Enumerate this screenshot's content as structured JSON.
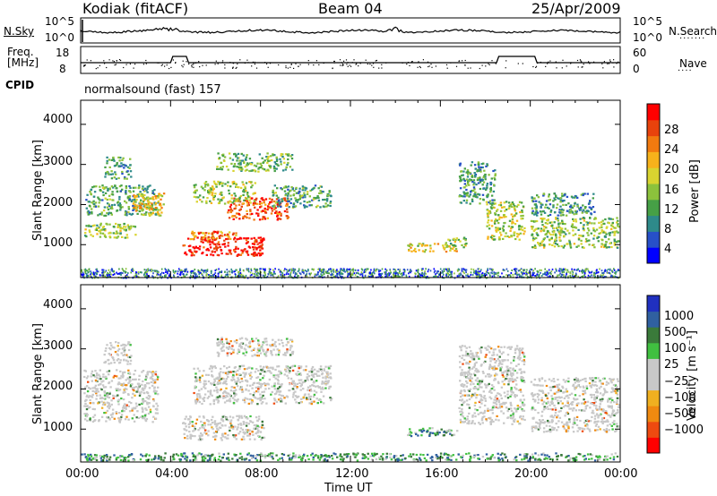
{
  "header": {
    "station": "Kodiak (fitACF)",
    "beam": "Beam 04",
    "date": "25/Apr/2009"
  },
  "top_panels": {
    "nsky_label": "N.Sky",
    "nsky_ticks": [
      "10^5",
      "10^0"
    ],
    "nsearch_label": "N.Search",
    "freq_label_line1": "Freq.",
    "freq_label_line2": "[MHz]",
    "freq_ticks": [
      "18",
      "8"
    ],
    "nave_label": "Nave",
    "nave_ticks": [
      "60",
      "0"
    ],
    "cpid_label": "CPID",
    "cpid_text": "normalsound (fast) 157"
  },
  "chart_data": [
    {
      "type": "heatmap",
      "name": "Power",
      "colorbar_label": "Power [dB]",
      "colorbar_ticks": [
        "28",
        "24",
        "20",
        "16",
        "12",
        "8",
        "4"
      ],
      "colorbar_colors": [
        "#0000ff",
        "#2750c8",
        "#2e8a8a",
        "#46a046",
        "#8cc23c",
        "#d9d430",
        "#f7b21b",
        "#f27a0f",
        "#e8420c",
        "#ff0000"
      ],
      "xlabel": "Time UT",
      "ylabel": "Slant Range [km]",
      "xlim_hours": [
        0,
        24
      ],
      "ylim_km": [
        180,
        4600
      ],
      "xticks": [
        "00:00",
        "04:00",
        "08:00",
        "12:00",
        "16:00",
        "20:00",
        "00:00"
      ],
      "yticks": [
        "1000",
        "2000",
        "3000",
        "4000"
      ],
      "regions": [
        {
          "t0": 0.1,
          "t1": 2.5,
          "r0": 1150,
          "r1": 1550,
          "level": 0.45
        },
        {
          "t0": 0.2,
          "t1": 3.5,
          "r0": 1700,
          "r1": 2500,
          "level": 0.35
        },
        {
          "t0": 1.0,
          "t1": 2.3,
          "r0": 2600,
          "r1": 3200,
          "level": 0.3
        },
        {
          "t0": 2.3,
          "t1": 3.8,
          "r0": 1700,
          "r1": 2300,
          "level": 0.6
        },
        {
          "t0": 4.5,
          "t1": 8.2,
          "r0": 700,
          "r1": 1200,
          "level": 0.95
        },
        {
          "t0": 4.8,
          "t1": 7.0,
          "r0": 1100,
          "r1": 1350,
          "level": 0.75
        },
        {
          "t0": 6.5,
          "t1": 9.3,
          "r0": 1600,
          "r1": 2200,
          "level": 0.85
        },
        {
          "t0": 5.0,
          "t1": 7.8,
          "r0": 2000,
          "r1": 2600,
          "level": 0.5
        },
        {
          "t0": 6.0,
          "t1": 9.5,
          "r0": 2800,
          "r1": 3300,
          "level": 0.4
        },
        {
          "t0": 8.5,
          "t1": 11.2,
          "r0": 1900,
          "r1": 2500,
          "level": 0.35
        },
        {
          "t0": 14.5,
          "t1": 16.8,
          "r0": 800,
          "r1": 1050,
          "level": 0.55
        },
        {
          "t0": 16.2,
          "t1": 17.2,
          "r0": 900,
          "r1": 1200,
          "level": 0.45
        },
        {
          "t0": 18.0,
          "t1": 19.8,
          "r0": 1100,
          "r1": 2100,
          "level": 0.5
        },
        {
          "t0": 16.8,
          "t1": 18.5,
          "r0": 2000,
          "r1": 3100,
          "level": 0.3
        },
        {
          "t0": 20.0,
          "t1": 24.0,
          "r0": 900,
          "r1": 1700,
          "level": 0.45
        },
        {
          "t0": 20.0,
          "t1": 23.0,
          "r0": 1700,
          "r1": 2300,
          "level": 0.3
        }
      ]
    },
    {
      "type": "heatmap",
      "name": "Velocity",
      "colorbar_label": "Velocity [m s⁻¹]",
      "colorbar_ticks": [
        "1000",
        "500",
        "100",
        "25",
        "−25",
        "−100",
        "−500",
        "−1000"
      ],
      "colorbar_colors": [
        "#ff0000",
        "#ee4a10",
        "#f08a10",
        "#f0b020",
        "#c8c8c8",
        "#c8c8c8",
        "#40c040",
        "#3a7a3a",
        "#3060a0",
        "#2030c0"
      ],
      "xlabel": "Time UT",
      "ylabel": "Slant Range [km]",
      "xlim_hours": [
        0,
        24
      ],
      "ylim_km": [
        180,
        4600
      ],
      "xticks": [
        "00:00",
        "04:00",
        "08:00",
        "12:00",
        "16:00",
        "20:00",
        "00:00"
      ],
      "yticks": [
        "1000",
        "2000",
        "3000",
        "4000"
      ],
      "regions": [
        {
          "t0": 0.1,
          "t1": 3.5,
          "r0": 1150,
          "r1": 2500,
          "level": 0.5
        },
        {
          "t0": 1.0,
          "t1": 2.3,
          "r0": 2600,
          "r1": 3200,
          "level": 0.5
        },
        {
          "t0": 4.5,
          "t1": 8.2,
          "r0": 700,
          "r1": 1350,
          "level": 0.5
        },
        {
          "t0": 5.0,
          "t1": 11.2,
          "r0": 1600,
          "r1": 2600,
          "level": 0.5
        },
        {
          "t0": 6.0,
          "t1": 9.5,
          "r0": 2800,
          "r1": 3300,
          "level": 0.5
        },
        {
          "t0": 14.5,
          "t1": 16.8,
          "r0": 800,
          "r1": 1050,
          "level": 0.7
        },
        {
          "t0": 16.8,
          "t1": 19.8,
          "r0": 1100,
          "r1": 3100,
          "level": 0.5
        },
        {
          "t0": 20.0,
          "t1": 24.0,
          "r0": 900,
          "r1": 2300,
          "level": 0.5
        },
        {
          "t0": 0.0,
          "t1": 24.0,
          "r0": 190,
          "r1": 420,
          "level": 0.72
        }
      ]
    }
  ]
}
